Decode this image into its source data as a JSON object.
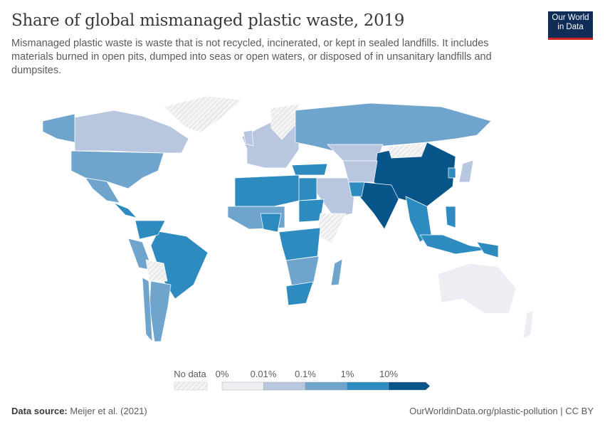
{
  "header": {
    "title": "Share of global mismanaged plastic waste, 2019",
    "subtitle": "Mismanaged plastic waste is waste that is not recycled, incinerated, or kept in sealed landfills. It includes materials burned in open pits, dumped into seas or open waters, or disposed of in unsanitary landfills and dumpsites.",
    "logo": "Our World in Data"
  },
  "chart_data": {
    "type": "choropleth-map",
    "year": 2019,
    "legend": {
      "no_data_label": "No data",
      "bins": [
        "0%",
        "0.01%",
        "0.1%",
        "1%",
        "10%"
      ],
      "colors": [
        "#ededf4",
        "#b9c6df",
        "#6fa5cd",
        "#2e8bbf",
        "#08558a"
      ],
      "no_data_color": "#e8e8e8"
    },
    "regions": [
      {
        "name": "Canada",
        "bin": "0.01%-0.1%"
      },
      {
        "name": "Alaska (USA)",
        "bin": "0.1%-1%"
      },
      {
        "name": "United States",
        "bin": "0.1%-1%"
      },
      {
        "name": "Mexico",
        "bin": "0.1%-1%"
      },
      {
        "name": "Central America",
        "bin": "1%-10%"
      },
      {
        "name": "Greenland",
        "bin": "No data"
      },
      {
        "name": "Brazil",
        "bin": "1%-10%"
      },
      {
        "name": "Colombia/Venezuela",
        "bin": "1%-10%"
      },
      {
        "name": "Peru",
        "bin": "0.1%-1%"
      },
      {
        "name": "Bolivia",
        "bin": "No data"
      },
      {
        "name": "Argentina",
        "bin": "0.1%-1%"
      },
      {
        "name": "Chile",
        "bin": "0.1%-1%"
      },
      {
        "name": "Western Europe",
        "bin": "0.01%-0.1%"
      },
      {
        "name": "Scandinavia",
        "bin": "No data"
      },
      {
        "name": "United Kingdom",
        "bin": "0.01%-0.1%"
      },
      {
        "name": "Russia",
        "bin": "0.1%-1%"
      },
      {
        "name": "Kazakhstan",
        "bin": "0.01%-0.1%"
      },
      {
        "name": "Turkey",
        "bin": "1%-10%"
      },
      {
        "name": "Middle East",
        "bin": "0.01%-0.1%"
      },
      {
        "name": "North Africa",
        "bin": "1%-10%"
      },
      {
        "name": "Egypt",
        "bin": "1%-10%"
      },
      {
        "name": "West Africa",
        "bin": "0.1%-1%"
      },
      {
        "name": "Nigeria",
        "bin": "1%-10%"
      },
      {
        "name": "Sudan",
        "bin": "1%-10%"
      },
      {
        "name": "Horn of Africa",
        "bin": "No data"
      },
      {
        "name": "Central Africa",
        "bin": "1%-10%"
      },
      {
        "name": "Southern Africa",
        "bin": "0.1%-1%"
      },
      {
        "name": "South Africa",
        "bin": "1%-10%"
      },
      {
        "name": "Madagascar",
        "bin": "0.1%-1%"
      },
      {
        "name": "China",
        "bin": ">10%"
      },
      {
        "name": "India",
        "bin": ">10%"
      },
      {
        "name": "Mongolia",
        "bin": "No data"
      },
      {
        "name": "Central Asia",
        "bin": "0.01%-0.1%"
      },
      {
        "name": "Pakistan",
        "bin": "1%-10%"
      },
      {
        "name": "Southeast Asia",
        "bin": "1%-10%"
      },
      {
        "name": "Indonesia",
        "bin": "1%-10%"
      },
      {
        "name": "Philippines",
        "bin": "1%-10%"
      },
      {
        "name": "Japan",
        "bin": "0.01%-0.1%"
      },
      {
        "name": "South Korea",
        "bin": "1%-10%"
      },
      {
        "name": "Papua New Guinea",
        "bin": "1%-10%"
      },
      {
        "name": "Australia",
        "bin": "0%-0.01%"
      },
      {
        "name": "New Zealand",
        "bin": "0%-0.01%"
      }
    ]
  },
  "footer": {
    "source_label": "Data source:",
    "source": "Meijer et al. (2021)",
    "link": "OurWorldinData.org/plastic-pollution | CC BY"
  }
}
